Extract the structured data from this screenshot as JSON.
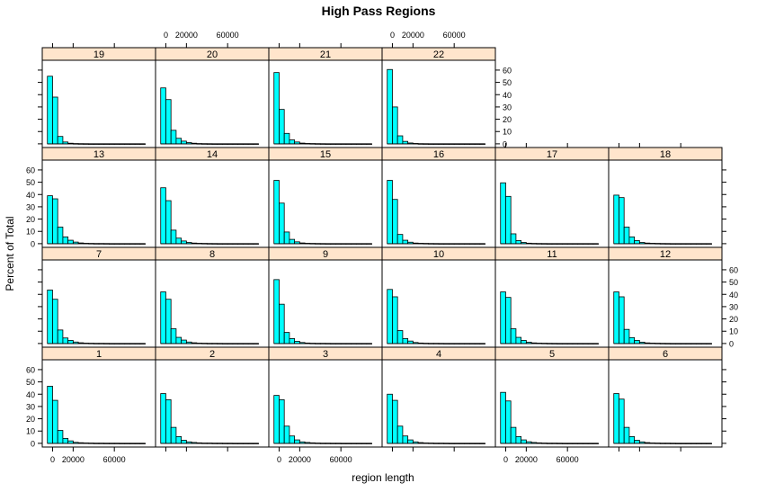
{
  "colors": {
    "bar_fill": "#00ffff",
    "strip_bg": "#ffe5cc",
    "axis": "#000000"
  },
  "chart_data": {
    "type": "bar",
    "title": "High Pass Regions",
    "xlabel": "region length",
    "ylabel": "Percent of Total",
    "ylim": [
      -3,
      68
    ],
    "xlim": [
      -10000,
      100000
    ],
    "yticks": [
      0,
      10,
      20,
      30,
      40,
      50,
      60
    ],
    "xticks": [
      0,
      20000,
      60000
    ],
    "xtick_labels": [
      "0",
      "20000",
      "60000"
    ],
    "bin_edges": [
      -5000,
      0,
      5000,
      10000,
      15000,
      20000,
      25000,
      30000,
      35000,
      40000,
      45000,
      50000,
      55000,
      60000,
      65000,
      70000,
      75000,
      80000,
      85000,
      90000
    ],
    "layout": [
      [
        19,
        20,
        21,
        22
      ],
      [
        13,
        14,
        15,
        16,
        17,
        18
      ],
      [
        7,
        8,
        9,
        10,
        11,
        12
      ],
      [
        1,
        2,
        3,
        4,
        5,
        6
      ]
    ],
    "panels": [
      {
        "name": "1",
        "values": [
          46.5,
          35,
          10.5,
          4,
          2,
          0.8,
          0.5,
          0.3,
          0.2,
          0.1,
          0.1,
          0.05,
          0.05,
          0.05,
          0,
          0,
          0,
          0,
          0
        ]
      },
      {
        "name": "2",
        "values": [
          40.5,
          35.5,
          13,
          5.5,
          2.5,
          1.2,
          0.7,
          0.4,
          0.2,
          0.2,
          0.1,
          0.1,
          0.05,
          0.05,
          0,
          0,
          0,
          0,
          0
        ]
      },
      {
        "name": "3",
        "values": [
          39,
          35.5,
          14,
          6,
          2.8,
          1.2,
          0.7,
          0.4,
          0.2,
          0.1,
          0.1,
          0.05,
          0.05,
          0,
          0,
          0,
          0,
          0,
          0
        ]
      },
      {
        "name": "4",
        "values": [
          40,
          35,
          14,
          6,
          2.8,
          1.2,
          0.6,
          0.3,
          0.2,
          0.1,
          0.1,
          0.05,
          0,
          0,
          0,
          0,
          0,
          0,
          0
        ]
      },
      {
        "name": "5",
        "values": [
          41.5,
          34.5,
          13,
          5.5,
          2.8,
          1.3,
          0.7,
          0.4,
          0.2,
          0.1,
          0.1,
          0.05,
          0,
          0,
          0,
          0,
          0,
          0,
          0
        ]
      },
      {
        "name": "6",
        "values": [
          40.5,
          36,
          13,
          5.5,
          2.5,
          1.2,
          0.6,
          0.3,
          0.2,
          0.1,
          0.1,
          0.05,
          0,
          0,
          0,
          0,
          0,
          0,
          0
        ]
      },
      {
        "name": "7",
        "values": [
          43.5,
          36,
          11,
          4.5,
          2.5,
          1.2,
          0.6,
          0.3,
          0.2,
          0.1,
          0.1,
          0.05,
          0,
          0,
          0,
          0,
          0,
          0,
          0
        ]
      },
      {
        "name": "8",
        "values": [
          42,
          36,
          12,
          5,
          2.8,
          1.2,
          0.6,
          0.3,
          0.2,
          0.1,
          0.1,
          0.05,
          0,
          0,
          0,
          0,
          0,
          0,
          0
        ]
      },
      {
        "name": "9",
        "values": [
          52,
          32,
          9,
          4,
          1.8,
          0.8,
          0.4,
          0.2,
          0.1,
          0.1,
          0.05,
          0,
          0,
          0,
          0,
          0,
          0,
          0,
          0
        ]
      },
      {
        "name": "10",
        "values": [
          44,
          38,
          10.5,
          4,
          2,
          0.8,
          0.4,
          0.2,
          0.1,
          0.1,
          0.05,
          0,
          0,
          0,
          0,
          0,
          0,
          0,
          0
        ]
      },
      {
        "name": "11",
        "values": [
          42,
          37.5,
          12,
          5,
          2.5,
          1.1,
          0.5,
          0.3,
          0.2,
          0.1,
          0.05,
          0,
          0,
          0,
          0,
          0,
          0,
          0,
          0
        ]
      },
      {
        "name": "12",
        "values": [
          42,
          38,
          11.5,
          4.8,
          2.5,
          1.1,
          0.5,
          0.3,
          0.2,
          0.1,
          0.05,
          0,
          0,
          0,
          0,
          0,
          0,
          0,
          0
        ]
      },
      {
        "name": "13",
        "values": [
          39,
          36.5,
          13.5,
          5.5,
          2.8,
          1.3,
          0.6,
          0.3,
          0.2,
          0.1,
          0.1,
          0.05,
          0,
          0,
          0,
          0,
          0,
          0,
          0
        ]
      },
      {
        "name": "14",
        "values": [
          45.5,
          35,
          11,
          4.5,
          2.2,
          1,
          0.5,
          0.3,
          0.2,
          0.1,
          0.05,
          0,
          0,
          0,
          0,
          0,
          0,
          0,
          0
        ]
      },
      {
        "name": "15",
        "values": [
          51.5,
          33,
          9.5,
          3.5,
          1.5,
          0.6,
          0.3,
          0.2,
          0.1,
          0.05,
          0,
          0,
          0,
          0,
          0,
          0,
          0,
          0,
          0
        ]
      },
      {
        "name": "16",
        "values": [
          51.5,
          36,
          7.5,
          2.8,
          1.2,
          0.5,
          0.3,
          0.2,
          0.1,
          0.05,
          0,
          0,
          0,
          0,
          0,
          0,
          0,
          0,
          0
        ]
      },
      {
        "name": "17",
        "values": [
          49.5,
          38.5,
          8,
          2.5,
          1,
          0.4,
          0.2,
          0.1,
          0.05,
          0,
          0,
          0,
          0,
          0,
          0,
          0,
          0,
          0,
          0
        ]
      },
      {
        "name": "18",
        "values": [
          39.5,
          37.5,
          13.5,
          5.5,
          2.5,
          1,
          0.5,
          0.3,
          0.2,
          0.1,
          0.05,
          0,
          0,
          0,
          0,
          0,
          0,
          0,
          0
        ]
      },
      {
        "name": "19",
        "values": [
          55,
          38,
          6,
          1.5,
          0.5,
          0.2,
          0.1,
          0.05,
          0,
          0,
          0,
          0,
          0,
          0,
          0,
          0,
          0,
          0,
          0
        ]
      },
      {
        "name": "20",
        "values": [
          45.5,
          36,
          11,
          4.5,
          2.2,
          1,
          0.5,
          0.2,
          0.1,
          0.05,
          0,
          0,
          0,
          0,
          0,
          0,
          0,
          0,
          0
        ]
      },
      {
        "name": "21",
        "values": [
          58,
          28,
          8.5,
          3.2,
          1.5,
          0.6,
          0.3,
          0.2,
          0.1,
          0.05,
          0,
          0,
          0,
          0,
          0,
          0,
          0,
          0,
          0
        ]
      },
      {
        "name": "22",
        "values": [
          60.5,
          30,
          6.5,
          2,
          0.7,
          0.3,
          0.1,
          0.05,
          0,
          0,
          0,
          0,
          0,
          0,
          0,
          0,
          0,
          0,
          0
        ]
      }
    ]
  }
}
